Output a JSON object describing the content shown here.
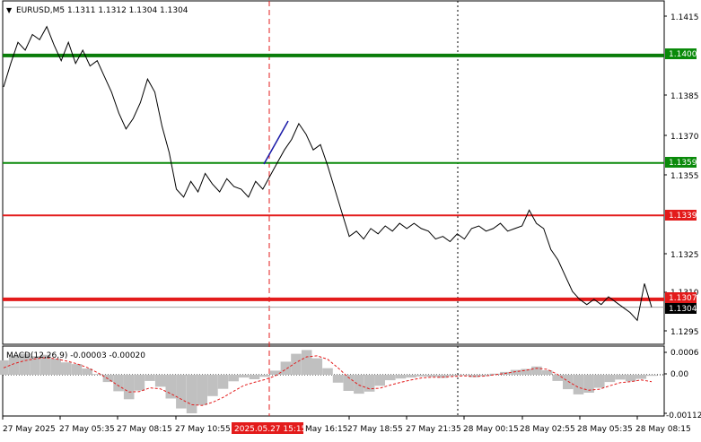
{
  "header": {
    "caret": "▼",
    "title": "EURUSD,M5  1.1311 1.1312 1.1304 1.1304"
  },
  "price_axis": {
    "ticks": [
      "1.1415",
      "1.1385",
      "1.1370",
      "1.1355",
      "1.1325",
      "1.1310",
      "1.1295"
    ]
  },
  "levels": [
    {
      "label": "1.1400",
      "value": 1.14,
      "color": "#0a7d0a",
      "bold": true
    },
    {
      "label": "1.1359",
      "value": 1.1359,
      "color": "#0a8a0a",
      "bold": false
    },
    {
      "label": "1.1339",
      "value": 1.1339,
      "color": "#e31b1b",
      "bold": false
    },
    {
      "label": "1.1307",
      "value": 1.1307,
      "color": "#e31b1b",
      "bold": true
    }
  ],
  "current_price": {
    "label": "1.1304",
    "value": 1.1304
  },
  "macd": {
    "title": "MACD(12,26,9) -0.00003 -0.00020",
    "ticks": [
      "0.0006",
      "0.00",
      "-0.00112"
    ]
  },
  "time_axis": {
    "labels": [
      "27 May 2025",
      "27 May 05:35",
      "27 May 08:15",
      "27 May 10:55",
      "2025.05.27 15:15",
      "May 16:15",
      "27 May 18:55",
      "27 May 21:35",
      "28 May 00:15",
      "28 May 02:55",
      "28 May 05:35",
      "28 May 08:15"
    ],
    "highlight_index": 4
  },
  "colors": {
    "price_line": "#000000",
    "histogram": "#c0c0c0",
    "signal_line": "#e31b1b",
    "trend_segment": "#1a1aa8",
    "time_highlight_bg": "#e31b1b",
    "axis_label_bg": "#0a8a0a"
  },
  "chart_data": {
    "type": "line",
    "title": "EURUSD,M5",
    "x_range": [
      "27 May 2025",
      "28 May 08:15"
    ],
    "ylim": [
      1.1289,
      1.1421
    ],
    "series": [
      {
        "values": [
          1.1388,
          1.1397,
          1.1405,
          1.1402,
          1.1408,
          1.1406,
          1.1411,
          1.1404,
          1.1398,
          1.1405,
          1.1397,
          1.1402,
          1.1396,
          1.1398,
          1.1392,
          1.1386,
          1.1378,
          1.1372,
          1.1376,
          1.1382,
          1.1391,
          1.1386,
          1.1373,
          1.1363,
          1.1349,
          1.1346,
          1.1352,
          1.1348,
          1.1355,
          1.1351,
          1.1348,
          1.1353,
          1.135,
          1.1349,
          1.1346,
          1.1352,
          1.1349,
          1.1354,
          1.1359,
          1.1364,
          1.1368,
          1.1374,
          1.137,
          1.1364,
          1.1366,
          1.1358,
          1.1349,
          1.134,
          1.1331,
          1.1333,
          1.133,
          1.1334,
          1.1332,
          1.1335,
          1.1333,
          1.1336,
          1.1334,
          1.1336,
          1.1334,
          1.1333,
          1.133,
          1.1331,
          1.1329,
          1.1332,
          1.133,
          1.1334,
          1.1335,
          1.1333,
          1.1334,
          1.1336,
          1.1333,
          1.1334,
          1.1335,
          1.1341,
          1.1336,
          1.1334,
          1.1326,
          1.1322,
          1.1316,
          1.131,
          1.1307,
          1.1305,
          1.1307,
          1.1305,
          1.1308,
          1.1306,
          1.1304,
          1.1302,
          1.1299,
          1.1313,
          1.1304
        ]
      }
    ],
    "macd": {
      "histogram": [
        0.00042,
        0.00056,
        0.00061,
        0.00054,
        0.00058,
        0.00047,
        0.00036,
        0.00031,
        0.00018,
        2e-05,
        -0.00021,
        -0.00048,
        -0.00071,
        -0.00046,
        -0.00018,
        -0.00035,
        -0.00069,
        -0.00098,
        -0.00112,
        -0.00088,
        -0.00062,
        -0.00041,
        -0.00019,
        -8e-05,
        -0.00013,
        -6e-05,
        0.00012,
        0.00038,
        0.00061,
        0.00072,
        0.00048,
        0.00019,
        -0.00023,
        -0.00047,
        -0.00055,
        -0.00049,
        -0.00032,
        -0.00016,
        -0.00011,
        -8e-05,
        -5e-05,
        -6e-05,
        -9e-05,
        -4e-05,
        -2e-05,
        -7e-05,
        -4e-05,
        3e-05,
        8e-05,
        0.00014,
        0.00017,
        0.00024,
        0.00013,
        -0.00018,
        -0.00042,
        -0.00057,
        -0.00052,
        -0.00038,
        -0.00021,
        -0.00014,
        -0.00019,
        -0.00012,
        -3e-05
      ],
      "signal": [
        0.0002,
        0.00032,
        0.00041,
        0.00046,
        0.0005,
        0.00046,
        0.0004,
        0.00032,
        0.00021,
        6e-05,
        -0.00012,
        -0.00032,
        -0.0005,
        -0.00049,
        -0.00038,
        -0.00041,
        -0.00055,
        -0.00071,
        -0.00087,
        -0.00089,
        -0.0008,
        -0.00066,
        -0.00048,
        -0.00031,
        -0.00022,
        -0.00014,
        -3e-05,
        0.00016,
        0.00036,
        0.00052,
        0.00055,
        0.00045,
        0.0002,
        -8e-05,
        -0.0003,
        -0.00041,
        -0.00039,
        -0.0003,
        -0.00022,
        -0.00015,
        -9e-05,
        -7e-05,
        -7e-05,
        -5e-05,
        -3e-05,
        -5e-05,
        -4e-05,
        0.0,
        4e-05,
        9e-05,
        0.00013,
        0.00019,
        0.00016,
        1e-05,
        -0.00019,
        -0.00037,
        -0.00045,
        -0.00042,
        -0.00032,
        -0.00023,
        -0.0002,
        -0.00015,
        -0.0002
      ]
    }
  }
}
